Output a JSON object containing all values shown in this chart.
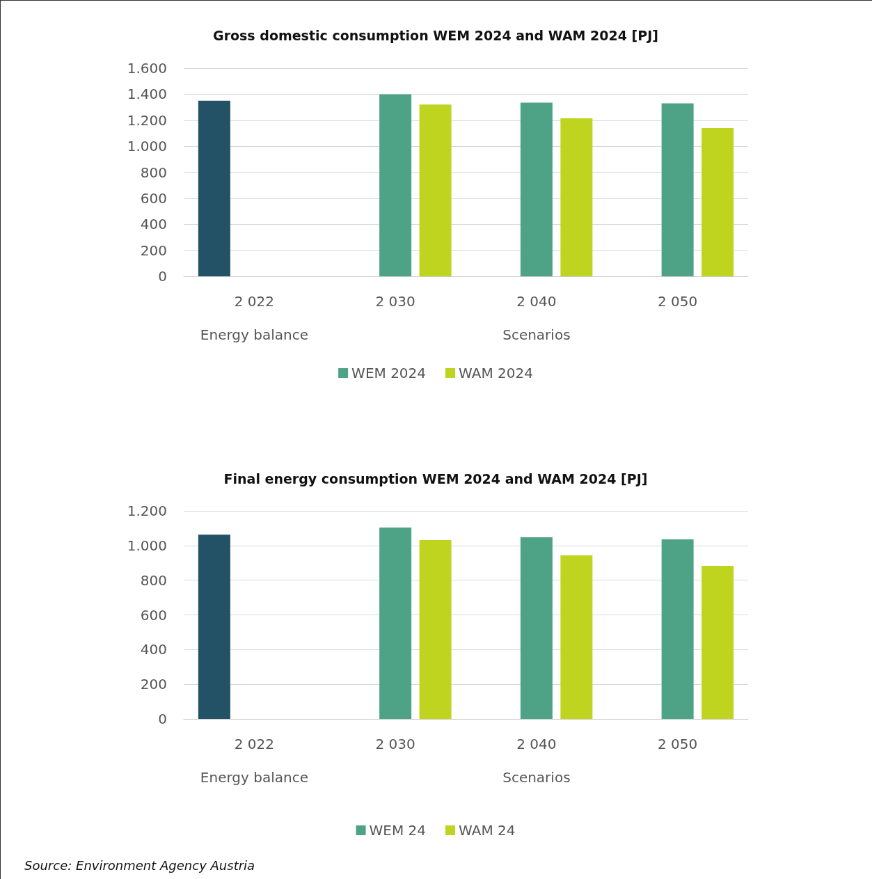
{
  "chart_data": [
    {
      "type": "bar",
      "title": "Gross domestic consumption WEM 2024 and WAM 2024 [PJ]",
      "categories": [
        "2 022",
        "2 030",
        "2 040",
        "2 050"
      ],
      "series": [
        {
          "color": "#235266",
          "values": [
            1350,
            null,
            null,
            null
          ]
        },
        {
          "name": "WEM 2024",
          "color": "#4ea387",
          "values": [
            null,
            1400,
            1335,
            1330
          ]
        },
        {
          "name": "WAM 2024",
          "color": "#bfd41f",
          "values": [
            null,
            1320,
            1215,
            1140
          ]
        }
      ],
      "ylim": [
        0,
        1600
      ],
      "yticks": [
        0,
        200,
        400,
        600,
        800,
        {
          "value": 1000,
          "label": "1.000"
        },
        {
          "value": 1200,
          "label": "1.200"
        },
        {
          "value": 1400,
          "label": "1.400"
        },
        {
          "value": 1600,
          "label": "1.600"
        }
      ],
      "annotations": [
        "Energy balance",
        "Scenarios"
      ],
      "grid": "y",
      "legend": "bottom"
    },
    {
      "type": "bar",
      "title": "Final energy consumption WEM 2024 and WAM 2024 [PJ]",
      "categories": [
        "2 022",
        "2 030",
        "2 040",
        "2 050"
      ],
      "series": [
        {
          "color": "#235266",
          "values": [
            1063,
            null,
            null,
            null
          ]
        },
        {
          "name": "WEM 24",
          "color": "#4ea387",
          "values": [
            null,
            1104,
            1047,
            1035
          ]
        },
        {
          "name": "WAM 24",
          "color": "#bfd41f",
          "values": [
            null,
            1031,
            943,
            883
          ]
        }
      ],
      "ylim": [
        0,
        1200
      ],
      "yticks": [
        0,
        200,
        400,
        600,
        800,
        {
          "value": 1000,
          "label": "1.000"
        },
        {
          "value": 1200,
          "label": "1.200"
        }
      ],
      "annotations": [
        "Energy balance",
        "Scenarios",
        "Source: Environment Agency Austria"
      ],
      "grid": "y",
      "legend": "bottom"
    }
  ]
}
